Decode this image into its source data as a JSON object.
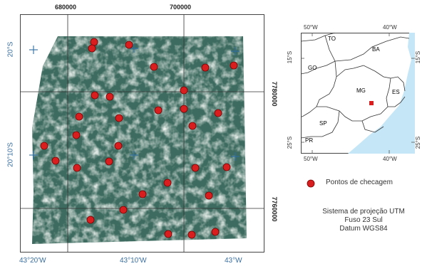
{
  "main_map": {
    "utm_x_labels": [
      "680000",
      "700000"
    ],
    "utm_y_labels": [
      "7780000",
      "7760000"
    ],
    "lon_labels": [
      "43°20'W",
      "43°10'W",
      "43°W"
    ],
    "lat_labels": [
      "20°S",
      "20°10'S"
    ],
    "point_color": "#d81e1e",
    "points": [
      [
        132,
        59
      ],
      [
        129,
        68
      ],
      [
        181,
        63
      ],
      [
        216,
        94
      ],
      [
        288,
        95
      ],
      [
        328,
        92
      ],
      [
        133,
        134
      ],
      [
        154,
        136
      ],
      [
        258,
        127
      ],
      [
        111,
        164
      ],
      [
        167,
        166
      ],
      [
        222,
        155
      ],
      [
        258,
        153
      ],
      [
        306,
        159
      ],
      [
        107,
        190
      ],
      [
        270,
        177
      ],
      [
        62,
        205
      ],
      [
        166,
        205
      ],
      [
        78,
        226
      ],
      [
        108,
        236
      ],
      [
        153,
        227
      ],
      [
        274,
        236
      ],
      [
        318,
        235
      ],
      [
        235,
        257
      ],
      [
        200,
        273
      ],
      [
        293,
        275
      ],
      [
        173,
        295
      ],
      [
        127,
        309
      ],
      [
        236,
        329
      ],
      [
        269,
        330
      ],
      [
        302,
        326
      ]
    ]
  },
  "inset_map": {
    "top_lon_labels": [
      "50°W",
      "40°W"
    ],
    "bottom_lon_labels": [
      "50°W",
      "40°W"
    ],
    "lat_labels": [
      "15°S",
      "25°S"
    ],
    "states": [
      "TO",
      "BA",
      "GO",
      "MG",
      "ES",
      "SP",
      "PR"
    ],
    "sea_color": "#c5e6f6",
    "mg_color": "#ffffff",
    "marker_color": "#d81e1e"
  },
  "legend": {
    "label": "Pontos de checagem",
    "marker_color": "#d81e1e"
  },
  "projection": {
    "line1": "Sistema de projeção UTM",
    "line2": "Fuso 23 Sul",
    "line3": "Datum WGS84"
  }
}
